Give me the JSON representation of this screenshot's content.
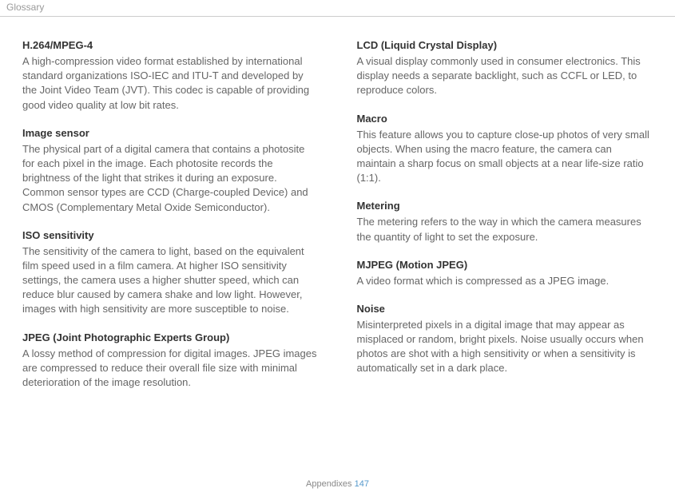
{
  "header": {
    "section_title": "Glossary"
  },
  "left_column": [
    {
      "term": "H.264/MPEG-4",
      "definition": "A high-compression video format established by international standard organizations ISO-IEC and ITU-T and developed by the Joint Video Team (JVT). This codec is capable of providing good video quality at low bit rates."
    },
    {
      "term": "Image sensor",
      "definition": "The physical part of a digital camera that contains a photosite for each pixel in the image. Each photosite records the brightness of the light that strikes it during an exposure. Common sensor types are CCD (Charge-coupled Device) and CMOS (Complementary Metal Oxide Semiconductor)."
    },
    {
      "term": "ISO sensitivity",
      "definition": "The sensitivity of the camera to light, based on the equivalent film speed used in a film camera. At higher ISO sensitivity settings, the camera uses a higher shutter speed, which can reduce blur caused by camera shake and low light. However, images with high sensitivity are more susceptible to noise."
    },
    {
      "term": "JPEG (Joint Photographic Experts Group)",
      "definition": "A lossy method of compression for digital images. JPEG images are compressed to reduce their overall file size with minimal deterioration of the image resolution."
    }
  ],
  "right_column": [
    {
      "term": "LCD (Liquid Crystal Display)",
      "definition": "A visual display commonly used in consumer electronics. This display needs a separate backlight, such as CCFL or LED, to reproduce colors."
    },
    {
      "term": "Macro",
      "definition": "This feature allows you to capture close-up photos of very small objects. When using the macro feature, the camera can maintain a sharp focus on small objects at a near life-size ratio (1:1)."
    },
    {
      "term": "Metering",
      "definition": "The metering refers to the way in which the camera measures the quantity of light to set the exposure."
    },
    {
      "term": "MJPEG (Motion JPEG)",
      "definition": "A video format which is compressed as a JPEG image."
    },
    {
      "term": "Noise",
      "definition": "Misinterpreted pixels in a digital image that may appear as misplaced or random, bright pixels. Noise usually occurs when photos are shot with a high sensitivity or when a sensitivity is automatically set in a dark place."
    }
  ],
  "footer": {
    "label": "Appendixes",
    "page_number": "147"
  }
}
